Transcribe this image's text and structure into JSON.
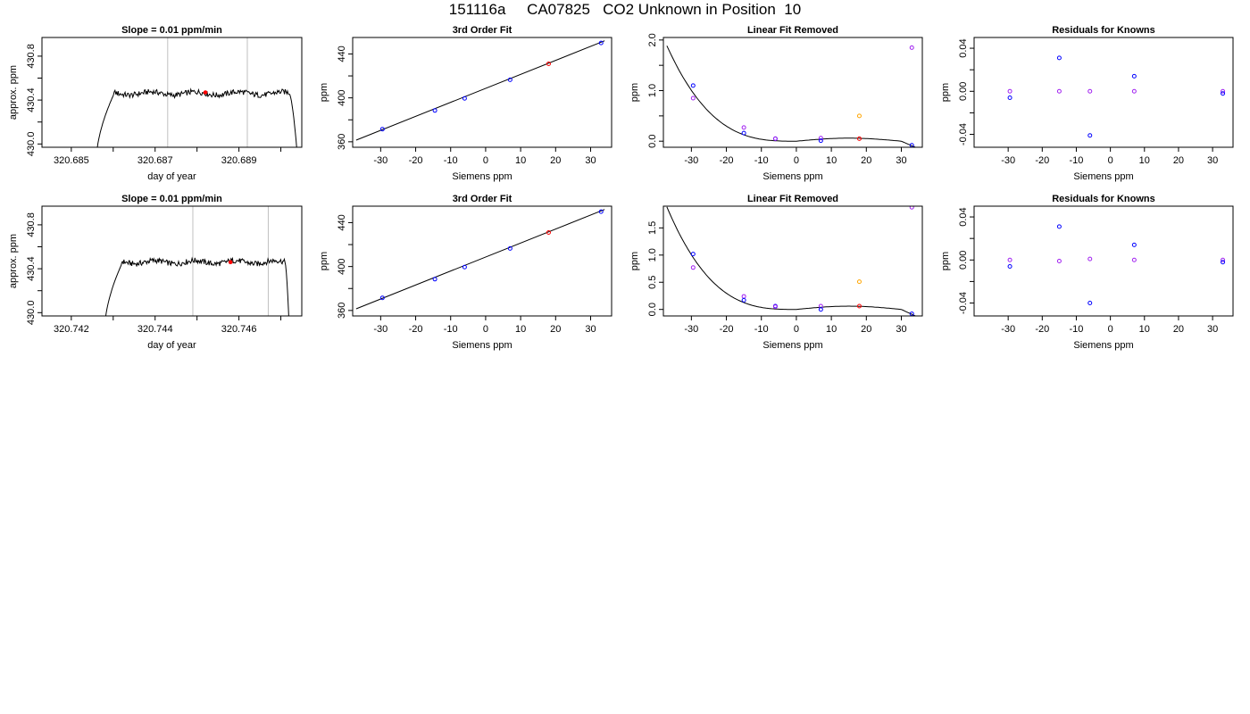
{
  "page_title": "151116a     CA07825   CO2 Unknown in Position  10",
  "colors": {
    "line": "#000000",
    "grid": "#c0c0c0",
    "blue": "#0000ff",
    "red": "#ff0000",
    "purple": "#a020f0",
    "orange": "#ffa500"
  },
  "chart_data": [
    {
      "id": "r1-trace",
      "type": "line",
      "title": "Slope =  0.01  ppm/min",
      "xlabel": "day of year",
      "ylabel": "approx. ppm",
      "xlim": [
        320.6843,
        320.6905
      ],
      "ylim": [
        429.97,
        430.97
      ],
      "xticks": [
        320.685,
        320.686,
        320.687,
        320.688,
        320.689,
        320.69
      ],
      "xtick_labels": [
        "320.685",
        "",
        "320.687",
        "",
        "320.689",
        ""
      ],
      "yticks": [
        430.0,
        430.2,
        430.4,
        430.6,
        430.8
      ],
      "ytick_labels": [
        "430.0",
        "",
        "430.4",
        "",
        "430.8"
      ],
      "vlines": [
        320.6873,
        320.6892
      ],
      "trace": {
        "x_start": 320.6856,
        "x_rise_end": 320.686,
        "x_fall_start": 320.6902,
        "x_end": 320.6904,
        "level": 430.46
      },
      "marker": {
        "x": 320.6882,
        "y": 430.47
      }
    },
    {
      "id": "r1-fit",
      "type": "scatter",
      "title": "3rd Order Fit",
      "xlabel": "Siemens ppm",
      "ylabel": "ppm",
      "xlim": [
        -38,
        36
      ],
      "ylim": [
        355,
        455
      ],
      "xticks": [
        -30,
        -20,
        -10,
        0,
        10,
        20,
        30
      ],
      "xtick_labels": [
        "-30",
        "-20",
        "-10",
        "0",
        "10",
        "20",
        "30"
      ],
      "yticks": [
        360,
        380,
        400,
        420,
        440
      ],
      "ytick_labels": [
        "360",
        "",
        "400",
        "",
        "440"
      ],
      "fit_line": {
        "x0": -37,
        "y0": 361.5,
        "x1": 34,
        "y1": 452
      },
      "points": [
        {
          "x": -29.5,
          "y": 371.5,
          "color": "blue"
        },
        {
          "x": -14.5,
          "y": 388.5,
          "color": "blue"
        },
        {
          "x": -6,
          "y": 399.5,
          "color": "blue"
        },
        {
          "x": 7,
          "y": 416.5,
          "color": "blue"
        },
        {
          "x": 18,
          "y": 431,
          "color": "red"
        },
        {
          "x": 33,
          "y": 450,
          "color": "blue"
        }
      ]
    },
    {
      "id": "r1-lin",
      "type": "scatter",
      "title": "Linear Fit Removed",
      "xlabel": "Siemens ppm",
      "ylabel": "ppm",
      "xlim": [
        -38,
        36
      ],
      "ylim": [
        -0.12,
        2.05
      ],
      "xticks": [
        -30,
        -20,
        -10,
        0,
        10,
        20,
        30
      ],
      "xtick_labels": [
        "-30",
        "-20",
        "-10",
        "0",
        "10",
        "20",
        "30"
      ],
      "yticks": [
        0,
        0.5,
        1.0,
        1.5,
        2.0
      ],
      "ytick_labels": [
        "0.0",
        "",
        "1.0",
        "",
        "2.0"
      ],
      "curve": {
        "coef": [
          1e-05,
          -0.0007,
          4e-05,
          0.021,
          -0.00035,
          -1e-05
        ],
        "x_from": -37,
        "x_to": 34
      },
      "points": [
        {
          "x": -29.5,
          "y": 1.1,
          "color": "blue"
        },
        {
          "x": -29.5,
          "y": 0.85,
          "color": "purple"
        },
        {
          "x": -15,
          "y": 0.27,
          "color": "purple"
        },
        {
          "x": -15,
          "y": 0.16,
          "color": "blue"
        },
        {
          "x": -6,
          "y": 0.05,
          "color": "blue"
        },
        {
          "x": -6,
          "y": 0.05,
          "color": "purple"
        },
        {
          "x": 7,
          "y": 0.06,
          "color": "purple"
        },
        {
          "x": 7,
          "y": 0.01,
          "color": "blue"
        },
        {
          "x": 18,
          "y": 0.5,
          "color": "orange"
        },
        {
          "x": 18,
          "y": 0.05,
          "color": "red"
        },
        {
          "x": 33,
          "y": 1.85,
          "color": "purple"
        },
        {
          "x": 33,
          "y": -0.08,
          "color": "blue"
        }
      ]
    },
    {
      "id": "r1-res",
      "type": "scatter",
      "title": "Residuals for Knowns",
      "xlabel": "Siemens ppm",
      "ylabel": "ppm",
      "xlim": [
        -40,
        36
      ],
      "ylim": [
        -0.052,
        0.05
      ],
      "xticks": [
        -30,
        -20,
        -10,
        0,
        10,
        20,
        30
      ],
      "xtick_labels": [
        "-30",
        "-20",
        "-10",
        "0",
        "10",
        "20",
        "30"
      ],
      "yticks": [
        -0.04,
        -0.02,
        0,
        0.02,
        0.04
      ],
      "ytick_labels": [
        "-0.04",
        "",
        "0.00",
        "",
        "0.04"
      ],
      "points": [
        {
          "x": -29.5,
          "y": 0,
          "color": "purple"
        },
        {
          "x": -29.5,
          "y": -0.006,
          "color": "blue"
        },
        {
          "x": -15,
          "y": 0.031,
          "color": "blue"
        },
        {
          "x": -15,
          "y": 0,
          "color": "purple"
        },
        {
          "x": -6,
          "y": 0,
          "color": "purple"
        },
        {
          "x": -6,
          "y": -0.041,
          "color": "blue"
        },
        {
          "x": 7,
          "y": 0.014,
          "color": "blue"
        },
        {
          "x": 7,
          "y": 0,
          "color": "purple"
        },
        {
          "x": 33,
          "y": 0,
          "color": "purple"
        },
        {
          "x": 33,
          "y": -0.002,
          "color": "blue"
        }
      ]
    },
    {
      "id": "r2-trace",
      "type": "line",
      "title": "Slope =  0.01  ppm/min",
      "xlabel": "day of year",
      "ylabel": "approx. ppm",
      "xlim": [
        320.7413,
        320.7475
      ],
      "ylim": [
        429.97,
        430.97
      ],
      "xticks": [
        320.742,
        320.743,
        320.744,
        320.745,
        320.746,
        320.747
      ],
      "xtick_labels": [
        "320.742",
        "",
        "320.744",
        "",
        "320.746",
        ""
      ],
      "yticks": [
        430.0,
        430.2,
        430.4,
        430.6,
        430.8
      ],
      "ytick_labels": [
        "430.0",
        "",
        "430.4",
        "",
        "430.8"
      ],
      "vlines": [
        320.7449,
        320.7467
      ],
      "trace": {
        "x_start": 320.7428,
        "x_rise_end": 320.7432,
        "x_fall_start": 320.7471,
        "x_end": 320.7472,
        "level": 430.46
      },
      "marker": {
        "x": 320.7458,
        "y": 430.46
      }
    },
    {
      "id": "r2-fit",
      "type": "scatter",
      "title": "3rd Order Fit",
      "xlabel": "Siemens ppm",
      "ylabel": "ppm",
      "xlim": [
        -38,
        36
      ],
      "ylim": [
        355,
        455
      ],
      "xticks": [
        -30,
        -20,
        -10,
        0,
        10,
        20,
        30
      ],
      "xtick_labels": [
        "-30",
        "-20",
        "-10",
        "0",
        "10",
        "20",
        "30"
      ],
      "yticks": [
        360,
        380,
        400,
        420,
        440
      ],
      "ytick_labels": [
        "360",
        "",
        "400",
        "",
        "440"
      ],
      "fit_line": {
        "x0": -37,
        "y0": 361.5,
        "x1": 34,
        "y1": 452
      },
      "points": [
        {
          "x": -29.5,
          "y": 371.5,
          "color": "blue"
        },
        {
          "x": -14.5,
          "y": 388.5,
          "color": "blue"
        },
        {
          "x": -6,
          "y": 399.5,
          "color": "blue"
        },
        {
          "x": 7,
          "y": 416.5,
          "color": "blue"
        },
        {
          "x": 18,
          "y": 431,
          "color": "red"
        },
        {
          "x": 33,
          "y": 450,
          "color": "blue"
        }
      ]
    },
    {
      "id": "r2-lin",
      "type": "scatter",
      "title": "Linear Fit Removed",
      "xlabel": "Siemens ppm",
      "ylabel": "ppm",
      "xlim": [
        -38,
        36
      ],
      "ylim": [
        -0.12,
        1.9
      ],
      "xticks": [
        -30,
        -20,
        -10,
        0,
        10,
        20,
        30
      ],
      "xtick_labels": [
        "-30",
        "-20",
        "-10",
        "0",
        "10",
        "20",
        "30"
      ],
      "yticks": [
        0,
        0.5,
        1.0,
        1.5
      ],
      "ytick_labels": [
        "0.0",
        "0.5",
        "1.0",
        "1.5"
      ],
      "curve": {
        "coef": [
          1e-05,
          -0.0007,
          4e-05,
          0.021,
          -0.00035,
          -1e-05
        ],
        "x_from": -37,
        "x_to": 34
      },
      "points": [
        {
          "x": -29.5,
          "y": 1.02,
          "color": "blue"
        },
        {
          "x": -29.5,
          "y": 0.77,
          "color": "purple"
        },
        {
          "x": -15,
          "y": 0.24,
          "color": "purple"
        },
        {
          "x": -15,
          "y": 0.17,
          "color": "blue"
        },
        {
          "x": -6,
          "y": 0.06,
          "color": "blue"
        },
        {
          "x": -6,
          "y": 0.05,
          "color": "purple"
        },
        {
          "x": 7,
          "y": 0.06,
          "color": "purple"
        },
        {
          "x": 7,
          "y": 0.0,
          "color": "blue"
        },
        {
          "x": 18,
          "y": 0.51,
          "color": "orange"
        },
        {
          "x": 18,
          "y": 0.06,
          "color": "red"
        },
        {
          "x": 33,
          "y": 1.88,
          "color": "purple"
        },
        {
          "x": 33,
          "y": -0.08,
          "color": "blue"
        }
      ]
    },
    {
      "id": "r2-res",
      "type": "scatter",
      "title": "Residuals for Knowns",
      "xlabel": "Siemens ppm",
      "ylabel": "ppm",
      "xlim": [
        -40,
        36
      ],
      "ylim": [
        -0.052,
        0.05
      ],
      "xticks": [
        -30,
        -20,
        -10,
        0,
        10,
        20,
        30
      ],
      "xtick_labels": [
        "-30",
        "-20",
        "-10",
        "0",
        "10",
        "20",
        "30"
      ],
      "yticks": [
        -0.04,
        -0.02,
        0,
        0.02,
        0.04
      ],
      "ytick_labels": [
        "-0.04",
        "",
        "0.00",
        "",
        "0.04"
      ],
      "points": [
        {
          "x": -29.5,
          "y": 0,
          "color": "purple"
        },
        {
          "x": -29.5,
          "y": -0.006,
          "color": "blue"
        },
        {
          "x": -15,
          "y": 0.031,
          "color": "blue"
        },
        {
          "x": -15,
          "y": -0.001,
          "color": "purple"
        },
        {
          "x": -6,
          "y": 0.001,
          "color": "purple"
        },
        {
          "x": -6,
          "y": -0.04,
          "color": "blue"
        },
        {
          "x": 7,
          "y": 0.014,
          "color": "blue"
        },
        {
          "x": 7,
          "y": 0,
          "color": "purple"
        },
        {
          "x": 33,
          "y": 0,
          "color": "purple"
        },
        {
          "x": 33,
          "y": -0.002,
          "color": "blue"
        }
      ]
    }
  ]
}
